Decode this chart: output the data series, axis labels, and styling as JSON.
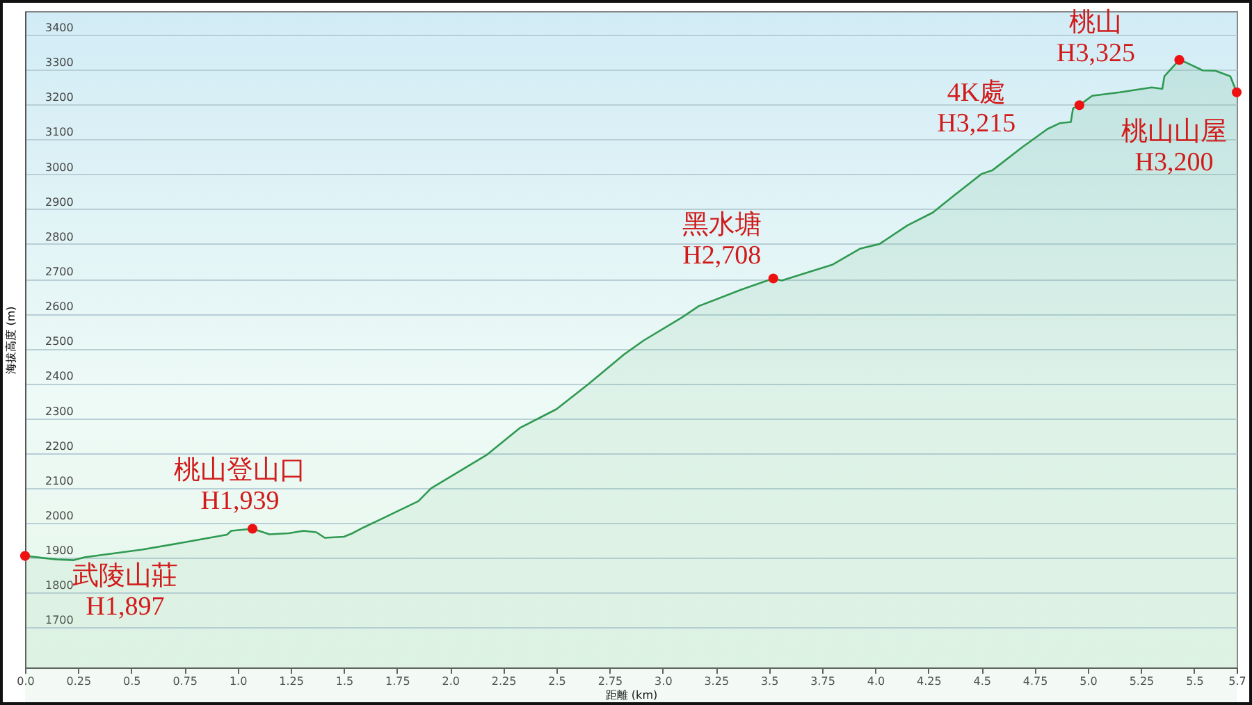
{
  "chart_data": {
    "type": "area",
    "xlabel": "距離 (km)",
    "ylabel": "海拔高度 (m)",
    "xlim": [
      0,
      5.7
    ],
    "ylim": [
      1585,
      3468
    ],
    "xticks": [
      {
        "value": 0,
        "label": "0.0"
      },
      0.25,
      0.5,
      0.75,
      {
        "value": 1,
        "label": "1.0"
      },
      1.25,
      1.5,
      1.75,
      {
        "value": 2,
        "label": "2.0"
      },
      2.25,
      2.5,
      2.75,
      {
        "value": 3,
        "label": "3.0"
      },
      3.25,
      3.5,
      3.75,
      {
        "value": 4,
        "label": "4.0"
      },
      4.25,
      4.5,
      4.75,
      {
        "value": 5,
        "label": "5.0"
      },
      5.25,
      5.5,
      5.7
    ],
    "yticks": [
      1700,
      1800,
      1900,
      2000,
      2100,
      2200,
      2300,
      2400,
      2500,
      2600,
      2700,
      2800,
      2900,
      3000,
      3100,
      3200,
      3300,
      3400
    ],
    "grid": "y",
    "series": [
      {
        "color": "#2e9950",
        "x": [
          0,
          0.09,
          0.15,
          0.23,
          0.28,
          0.55,
          0.74,
          0.95,
          0.97,
          1.07,
          1.15,
          1.24,
          1.31,
          1.37,
          1.41,
          1.5,
          1.54,
          1.59,
          1.67,
          1.85,
          1.91,
          2.17,
          2.33,
          2.5,
          2.65,
          2.82,
          2.91,
          3.09,
          3.17,
          3.37,
          3.52,
          3.56,
          3.8,
          3.93,
          4.02,
          4.15,
          4.27,
          4.37,
          4.5,
          4.55,
          4.69,
          4.81,
          4.87,
          4.92,
          4.93,
          4.96,
          5.02,
          5.15,
          5.3,
          5.35,
          5.36,
          5.43,
          5.46,
          5.54,
          5.6,
          5.67,
          5.7
        ],
        "values": [
          1905,
          1899,
          1895,
          1893,
          1901,
          1923,
          1943,
          1966,
          1977,
          1983,
          1967,
          1970,
          1977,
          1973,
          1957,
          1960,
          1970,
          1986,
          2009,
          2062,
          2099,
          2194,
          2273,
          2326,
          2398,
          2484,
          2523,
          2589,
          2622,
          2669,
          2701,
          2695,
          2741,
          2787,
          2800,
          2853,
          2890,
          2939,
          3001,
          3011,
          3077,
          3130,
          3147,
          3150,
          3189,
          3198,
          3225,
          3235,
          3249,
          3245,
          3281,
          3328,
          3321,
          3298,
          3297,
          3281,
          3235
        ]
      }
    ],
    "annotations": [
      {
        "text": "武陵山莊\nH1,897",
        "x": 0,
        "y": 1905
      },
      {
        "text": "桃山登山口\nH1,939",
        "x": 1.07,
        "y": 1983
      },
      {
        "text": "黑水塘\nH2,708",
        "x": 3.52,
        "y": 2701
      },
      {
        "text": "4K處\nH3,215",
        "x": 4.96,
        "y": 3198
      },
      {
        "text": "桃山\nH3,325",
        "x": 5.43,
        "y": 3328
      },
      {
        "text": "桃山山屋\nH3,200",
        "x": 5.7,
        "y": 3235
      }
    ]
  }
}
